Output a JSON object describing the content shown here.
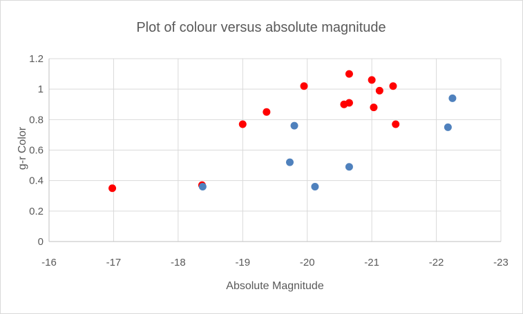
{
  "chart_data": {
    "type": "scatter",
    "title": "Plot of colour versus absolute magnitude",
    "xlabel": "Absolute Magnitude",
    "ylabel": "g-r Color",
    "xlim": [
      -16,
      -23
    ],
    "ylim": [
      0,
      1.2
    ],
    "x_reversed": true,
    "grid": true,
    "x_ticks": [
      "-16",
      "-17",
      "-18",
      "-19",
      "-20",
      "-21",
      "-22",
      "-23"
    ],
    "y_ticks": [
      "0",
      "0.2",
      "0.4",
      "0.6",
      "0.8",
      "1",
      "1.2"
    ],
    "series": [
      {
        "color": "#ff0000",
        "points": [
          {
            "x": -16.98,
            "y": 0.35
          },
          {
            "x": -18.37,
            "y": 0.37
          },
          {
            "x": -19.0,
            "y": 0.77
          },
          {
            "x": -19.37,
            "y": 0.85
          },
          {
            "x": -19.95,
            "y": 1.02
          },
          {
            "x": -20.57,
            "y": 0.9
          },
          {
            "x": -20.65,
            "y": 0.91
          },
          {
            "x": -20.65,
            "y": 1.1
          },
          {
            "x": -21.0,
            "y": 1.06
          },
          {
            "x": -21.03,
            "y": 0.88
          },
          {
            "x": -21.12,
            "y": 0.99
          },
          {
            "x": -21.33,
            "y": 1.02
          },
          {
            "x": -21.37,
            "y": 0.77
          }
        ]
      },
      {
        "color": "#4f81bd",
        "points": [
          {
            "x": -18.38,
            "y": 0.36
          },
          {
            "x": -19.73,
            "y": 0.52
          },
          {
            "x": -19.8,
            "y": 0.76
          },
          {
            "x": -20.12,
            "y": 0.36
          },
          {
            "x": -20.65,
            "y": 0.49
          },
          {
            "x": -22.18,
            "y": 0.75
          },
          {
            "x": -22.25,
            "y": 0.94
          }
        ]
      }
    ]
  }
}
